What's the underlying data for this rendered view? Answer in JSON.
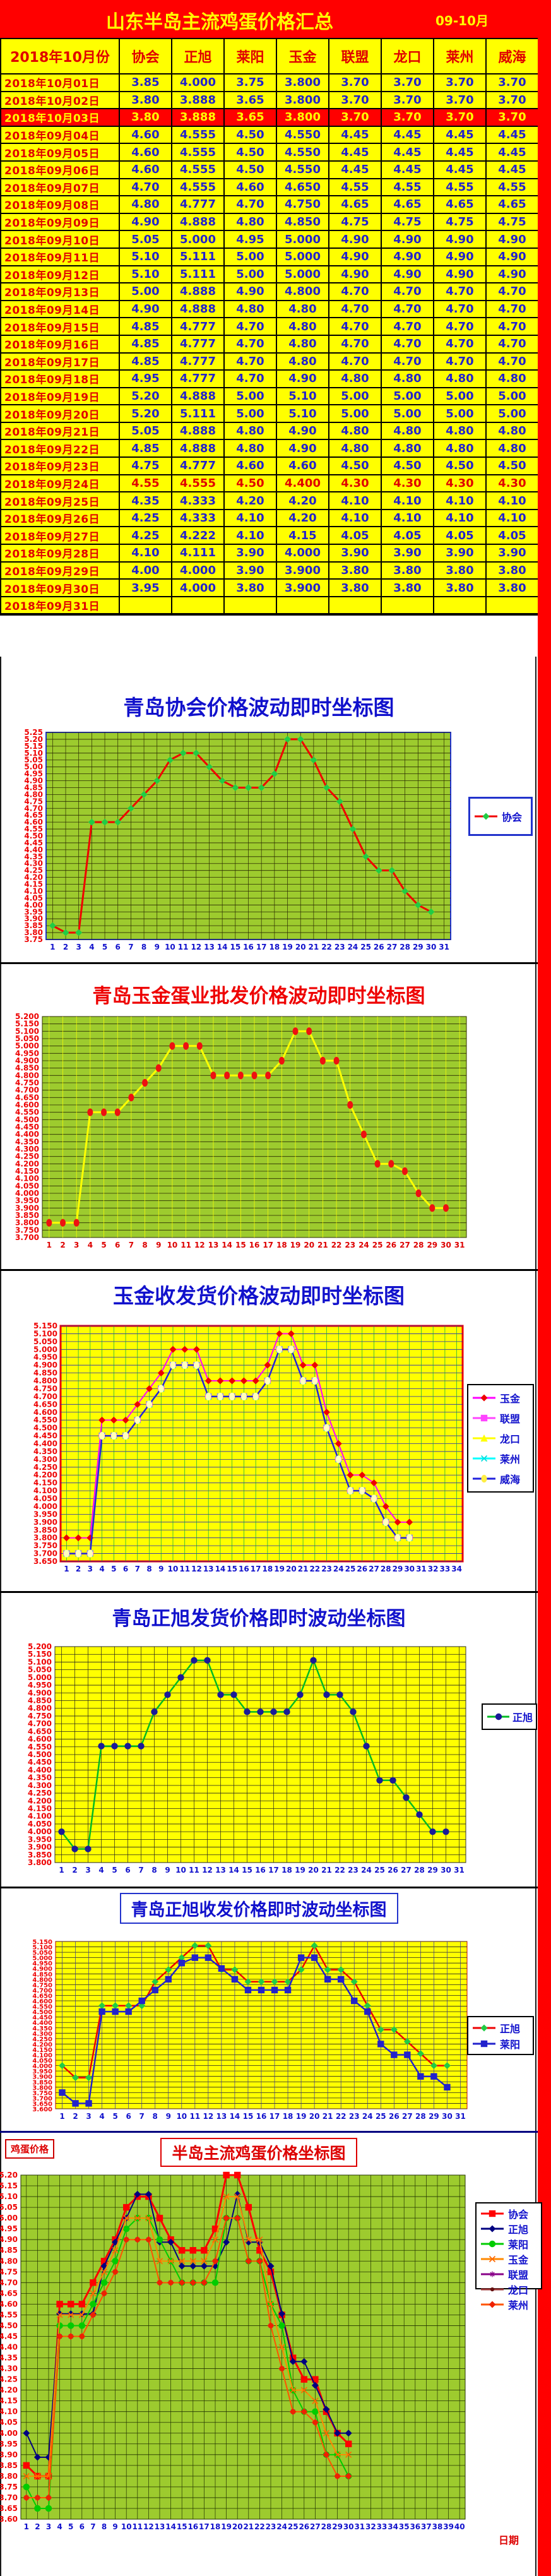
{
  "header": {
    "title": "山东半岛主流鸡蛋价格汇总",
    "period": "09-10月"
  },
  "table": {
    "date_header": "2018年10月份",
    "columns": [
      "协会",
      "正旭",
      "莱阳",
      "玉金",
      "联盟",
      "龙口",
      "莱州",
      "威海"
    ],
    "rows": [
      {
        "date": "2018年10月01日",
        "style": "normal",
        "values": [
          "3.85",
          "4.000",
          "3.75",
          "3.800",
          "3.70",
          "3.70",
          "3.70",
          "3.70"
        ]
      },
      {
        "date": "2018年10月02日",
        "style": "normal",
        "values": [
          "3.80",
          "3.888",
          "3.65",
          "3.800",
          "3.70",
          "3.70",
          "3.70",
          "3.70"
        ]
      },
      {
        "date": "2018年10月03日",
        "style": "red-bg",
        "values": [
          "3.80",
          "3.888",
          "3.65",
          "3.800",
          "3.70",
          "3.70",
          "3.70",
          "3.70"
        ]
      },
      {
        "date": "2018年09月04日",
        "style": "normal",
        "values": [
          "4.60",
          "4.555",
          "4.50",
          "4.550",
          "4.45",
          "4.45",
          "4.45",
          "4.45"
        ]
      },
      {
        "date": "2018年09月05日",
        "style": "normal",
        "values": [
          "4.60",
          "4.555",
          "4.50",
          "4.550",
          "4.45",
          "4.45",
          "4.45",
          "4.45"
        ]
      },
      {
        "date": "2018年09月06日",
        "style": "normal",
        "values": [
          "4.60",
          "4.555",
          "4.50",
          "4.550",
          "4.45",
          "4.45",
          "4.45",
          "4.45"
        ]
      },
      {
        "date": "2018年09月07日",
        "style": "normal",
        "values": [
          "4.70",
          "4.555",
          "4.60",
          "4.650",
          "4.55",
          "4.55",
          "4.55",
          "4.55"
        ]
      },
      {
        "date": "2018年09月08日",
        "style": "normal",
        "values": [
          "4.80",
          "4.777",
          "4.70",
          "4.750",
          "4.65",
          "4.65",
          "4.65",
          "4.65"
        ]
      },
      {
        "date": "2018年09月09日",
        "style": "normal",
        "values": [
          "4.90",
          "4.888",
          "4.80",
          "4.850",
          "4.75",
          "4.75",
          "4.75",
          "4.75"
        ]
      },
      {
        "date": "2018年09月10日",
        "style": "normal",
        "values": [
          "5.05",
          "5.000",
          "4.95",
          "5.000",
          "4.90",
          "4.90",
          "4.90",
          "4.90"
        ]
      },
      {
        "date": "2018年09月11日",
        "style": "normal",
        "values": [
          "5.10",
          "5.111",
          "5.00",
          "5.000",
          "4.90",
          "4.90",
          "4.90",
          "4.90"
        ]
      },
      {
        "date": "2018年09月12日",
        "style": "normal",
        "values": [
          "5.10",
          "5.111",
          "5.00",
          "5.000",
          "4.90",
          "4.90",
          "4.90",
          "4.90"
        ]
      },
      {
        "date": "2018年09月13日",
        "style": "normal",
        "values": [
          "5.00",
          "4.888",
          "4.90",
          "4.800",
          "4.70",
          "4.70",
          "4.70",
          "4.70"
        ]
      },
      {
        "date": "2018年09月14日",
        "style": "normal",
        "values": [
          "4.90",
          "4.888",
          "4.80",
          "4.80",
          "4.70",
          "4.70",
          "4.70",
          "4.70"
        ]
      },
      {
        "date": "2018年09月15日",
        "style": "normal",
        "values": [
          "4.85",
          "4.777",
          "4.70",
          "4.80",
          "4.70",
          "4.70",
          "4.70",
          "4.70"
        ]
      },
      {
        "date": "2018年09月16日",
        "style": "normal",
        "values": [
          "4.85",
          "4.777",
          "4.70",
          "4.80",
          "4.70",
          "4.70",
          "4.70",
          "4.70"
        ]
      },
      {
        "date": "2018年09月17日",
        "style": "normal",
        "values": [
          "4.85",
          "4.777",
          "4.70",
          "4.80",
          "4.70",
          "4.70",
          "4.70",
          "4.70"
        ]
      },
      {
        "date": "2018年09月18日",
        "style": "normal",
        "values": [
          "4.95",
          "4.777",
          "4.70",
          "4.90",
          "4.80",
          "4.80",
          "4.80",
          "4.80"
        ]
      },
      {
        "date": "2018年09月19日",
        "style": "normal",
        "values": [
          "5.20",
          "4.888",
          "5.00",
          "5.10",
          "5.00",
          "5.00",
          "5.00",
          "5.00"
        ]
      },
      {
        "date": "2018年09月20日",
        "style": "normal",
        "values": [
          "5.20",
          "5.111",
          "5.00",
          "5.10",
          "5.00",
          "5.00",
          "5.00",
          "5.00"
        ]
      },
      {
        "date": "2018年09月21日",
        "style": "normal",
        "values": [
          "5.05",
          "4.888",
          "4.80",
          "4.90",
          "4.80",
          "4.80",
          "4.80",
          "4.80"
        ]
      },
      {
        "date": "2018年09月22日",
        "style": "normal",
        "values": [
          "4.85",
          "4.888",
          "4.80",
          "4.90",
          "4.80",
          "4.80",
          "4.80",
          "4.80"
        ]
      },
      {
        "date": "2018年09月23日",
        "style": "normal",
        "values": [
          "4.75",
          "4.777",
          "4.60",
          "4.60",
          "4.50",
          "4.50",
          "4.50",
          "4.50"
        ]
      },
      {
        "date": "2018年09月24日",
        "style": "red-text",
        "values": [
          "4.55",
          "4.555",
          "4.50",
          "4.400",
          "4.30",
          "4.30",
          "4.30",
          "4.30"
        ]
      },
      {
        "date": "2018年09月25日",
        "style": "normal",
        "values": [
          "4.35",
          "4.333",
          "4.20",
          "4.20",
          "4.10",
          "4.10",
          "4.10",
          "4.10"
        ]
      },
      {
        "date": "2018年09月26日",
        "style": "normal",
        "values": [
          "4.25",
          "4.333",
          "4.10",
          "4.20",
          "4.10",
          "4.10",
          "4.10",
          "4.10"
        ]
      },
      {
        "date": "2018年09月27日",
        "style": "normal",
        "values": [
          "4.25",
          "4.222",
          "4.10",
          "4.15",
          "4.05",
          "4.05",
          "4.05",
          "4.05"
        ]
      },
      {
        "date": "2018年09月28日",
        "style": "normal",
        "values": [
          "4.10",
          "4.111",
          "3.90",
          "4.000",
          "3.90",
          "3.90",
          "3.90",
          "3.90"
        ]
      },
      {
        "date": "2018年09月29日",
        "style": "normal",
        "values": [
          "4.00",
          "4.000",
          "3.90",
          "3.900",
          "3.80",
          "3.80",
          "3.80",
          "3.80"
        ]
      },
      {
        "date": "2018年09月30日",
        "style": "normal",
        "values": [
          "3.95",
          "4.000",
          "3.80",
          "3.900",
          "3.80",
          "3.80",
          "3.80",
          "3.80"
        ]
      },
      {
        "date": "2018年09月31日",
        "style": "normal",
        "values": [
          "",
          "",
          "",
          "",
          "",
          "",
          "",
          ""
        ]
      }
    ]
  },
  "price_series": {
    "协会": [
      3.85,
      3.8,
      3.8,
      4.6,
      4.6,
      4.6,
      4.7,
      4.8,
      4.9,
      5.05,
      5.1,
      5.1,
      5.0,
      4.9,
      4.85,
      4.85,
      4.85,
      4.95,
      5.2,
      5.2,
      5.05,
      4.85,
      4.75,
      4.55,
      4.35,
      4.25,
      4.25,
      4.1,
      4.0,
      3.95
    ],
    "正旭": [
      4.0,
      3.888,
      3.888,
      4.555,
      4.555,
      4.555,
      4.555,
      4.777,
      4.888,
      5.0,
      5.111,
      5.111,
      4.888,
      4.888,
      4.777,
      4.777,
      4.777,
      4.777,
      4.888,
      5.111,
      4.888,
      4.888,
      4.777,
      4.555,
      4.333,
      4.333,
      4.222,
      4.111,
      4.0,
      4.0
    ],
    "莱阳": [
      3.75,
      3.65,
      3.65,
      4.5,
      4.5,
      4.5,
      4.6,
      4.7,
      4.8,
      4.95,
      5.0,
      5.0,
      4.9,
      4.8,
      4.7,
      4.7,
      4.7,
      4.7,
      5.0,
      5.0,
      4.8,
      4.8,
      4.6,
      4.5,
      4.2,
      4.1,
      4.1,
      3.9,
      3.9,
      3.8
    ],
    "玉金": [
      3.8,
      3.8,
      3.8,
      4.55,
      4.55,
      4.55,
      4.65,
      4.75,
      4.85,
      5.0,
      5.0,
      5.0,
      4.8,
      4.8,
      4.8,
      4.8,
      4.8,
      4.9,
      5.1,
      5.1,
      4.9,
      4.9,
      4.6,
      4.4,
      4.2,
      4.2,
      4.15,
      4.0,
      3.9,
      3.9
    ],
    "联盟": [
      3.7,
      3.7,
      3.7,
      4.45,
      4.45,
      4.45,
      4.55,
      4.65,
      4.75,
      4.9,
      4.9,
      4.9,
      4.7,
      4.7,
      4.7,
      4.7,
      4.7,
      4.8,
      5.0,
      5.0,
      4.8,
      4.8,
      4.5,
      4.3,
      4.1,
      4.1,
      4.05,
      3.9,
      3.8,
      3.8
    ]
  },
  "chart_data": [
    {
      "type": "line",
      "title": "青岛协会价格波动即时坐标图",
      "ymax": 5.25,
      "ymin": 3.75,
      "ystep": 0.05,
      "y_decimals": 2,
      "x_slots": 31,
      "series": [
        {
          "name": "协会",
          "values_key": "协会",
          "color": "#F00000",
          "width": 3,
          "marker": "diamond",
          "marker_color": "#22CC44"
        }
      ],
      "legend": {
        "entries": [
          {
            "label": "协会",
            "line_color": "#F00000",
            "marker": "diamond",
            "marker_color": "#22CC44"
          }
        ]
      }
    },
    {
      "type": "line",
      "title": "青岛玉金蛋业批发价格波动即时坐标图",
      "ymax": 5.2,
      "ymin": 3.7,
      "ystep": 0.05,
      "y_decimals": 3,
      "x_slots": 31,
      "series": [
        {
          "name": "玉金",
          "values_key": "玉金",
          "color": "#FFFF00",
          "width": 3,
          "marker": "ellipse",
          "marker_color": "#EE1111"
        }
      ],
      "legend": null
    },
    {
      "type": "line",
      "title": "玉金收发货价格波动即时坐标图",
      "ymax": 5.15,
      "ymin": 3.65,
      "ystep": 0.05,
      "y_decimals": 3,
      "x_slots": 34,
      "series": [
        {
          "name": "玉金",
          "values_key": "玉金",
          "color": "#FF00FF",
          "width": 2,
          "marker": "diamond",
          "marker_color": "#EE0000"
        },
        {
          "name": "联盟",
          "values_key": "联盟",
          "color": "#FF44FF",
          "width": 2,
          "marker": "square",
          "marker_color": "#FF44FF"
        },
        {
          "name": "龙口",
          "values_key": "联盟",
          "color": "#FFFF00",
          "width": 2,
          "marker": "triangle",
          "marker_color": "#FFFF00"
        },
        {
          "name": "莱州",
          "values_key": "联盟",
          "color": "#00FFFF",
          "width": 2,
          "marker": "x",
          "marker_color": "#00DDDD"
        },
        {
          "name": "威海",
          "values_key": "联盟",
          "color": "#2222DD",
          "width": 2.5,
          "marker": "ellipse",
          "marker_color": "#FFFFBB"
        }
      ],
      "legend": {
        "entries": [
          {
            "label": "玉金",
            "line_color": "#FF00FF",
            "marker": "diamond",
            "marker_color": "#EE0000"
          },
          {
            "label": "联盟",
            "line_color": "#FF44FF",
            "marker": "square",
            "marker_color": "#FF44FF"
          },
          {
            "label": "龙口",
            "line_color": "#FFFF00",
            "marker": "triangle",
            "marker_color": "#FFFF00"
          },
          {
            "label": "莱州",
            "line_color": "#00FFFF",
            "marker": "x",
            "marker_color": "#00DDDD"
          },
          {
            "label": "威海",
            "line_color": "#2222DD",
            "marker": "ellipse",
            "marker_color": "#FFEE44"
          }
        ]
      }
    },
    {
      "type": "line",
      "title": "青岛正旭发货价格即时波动坐标图",
      "ymax": 5.2,
      "ymin": 3.8,
      "ystep": 0.05,
      "y_decimals": 3,
      "x_slots": 31,
      "series": [
        {
          "name": "正旭",
          "values_key": "正旭",
          "color": "#00BB22",
          "width": 2.5,
          "marker": "circle",
          "marker_color": "#1A1A99"
        }
      ],
      "legend": {
        "entries": [
          {
            "label": "正旭",
            "line_color": "#00BB22",
            "marker": "circle",
            "marker_color": "#1A1A99"
          }
        ]
      }
    },
    {
      "type": "line",
      "title": "青岛正旭收发价格即时波动坐标图",
      "ymax": 5.15,
      "ymin": 3.6,
      "ystep": 0.05,
      "y_decimals": 3,
      "x_slots": 31,
      "series": [
        {
          "name": "正旭",
          "values_key": "正旭",
          "color": "#EE0000",
          "width": 2.5,
          "marker": "diamond",
          "marker_color": "#22CC44"
        },
        {
          "name": "莱阳",
          "values_key": "莱阳",
          "color": "#2222CC",
          "width": 2.5,
          "marker": "square",
          "marker_color": "#2222CC"
        }
      ],
      "legend": {
        "entries": [
          {
            "label": "正旭",
            "line_color": "#EE0000",
            "marker": "diamond",
            "marker_color": "#22CC44"
          },
          {
            "label": "莱阳",
            "line_color": "#2222CC",
            "marker": "square",
            "marker_color": "#2222CC"
          }
        ]
      }
    },
    {
      "type": "line",
      "title": "半岛主流鸡蛋价格坐标图",
      "ymax": 5.2,
      "ymin": 3.6,
      "ystep": 0.05,
      "y_decimals": 2,
      "x_slots": 40,
      "series": [
        {
          "name": "协会",
          "values_key": "协会",
          "color": "#FF0000",
          "width": 3,
          "marker": "square",
          "marker_color": "#FF0000"
        },
        {
          "name": "正旭",
          "values_key": "正旭",
          "color": "#000080",
          "width": 2,
          "marker": "diamond",
          "marker_color": "#000080"
        },
        {
          "name": "莱阳",
          "values_key": "莱阳",
          "color": "#00CC00",
          "width": 2,
          "marker": "circle",
          "marker_color": "#00CC00"
        },
        {
          "name": "玉金",
          "values_key": "玉金",
          "color": "#FF8800",
          "width": 2,
          "marker": "x",
          "marker_color": "#FF6600"
        },
        {
          "name": "联盟",
          "values_key": "联盟",
          "color": "#880088",
          "width": 1.5,
          "marker": "asterisk",
          "marker_color": "#880088"
        },
        {
          "name": "龙口",
          "values_key": "联盟",
          "color": "#993333",
          "width": 1.5,
          "marker": "dot",
          "marker_color": "#661111"
        },
        {
          "name": "莱州",
          "values_key": "联盟",
          "color": "#FF5500",
          "width": 2,
          "marker": "diamond",
          "marker_color": "#EE2200"
        }
      ],
      "legend": {
        "entries": [
          {
            "label": "协会",
            "line_color": "#FF0000",
            "marker": "square",
            "marker_color": "#FF0000"
          },
          {
            "label": "正旭",
            "line_color": "#000080",
            "marker": "diamond",
            "marker_color": "#000080"
          },
          {
            "label": "莱阳",
            "line_color": "#00CC00",
            "marker": "circle",
            "marker_color": "#00CC00"
          },
          {
            "label": "玉金",
            "line_color": "#FF8800",
            "marker": "x",
            "marker_color": "#FF6600"
          },
          {
            "label": "联盟",
            "line_color": "#880088",
            "marker": "asterisk",
            "marker_color": "#880088"
          },
          {
            "label": "龙口",
            "line_color": "#993333",
            "marker": "dot",
            "marker_color": "#661111"
          },
          {
            "label": "莱州",
            "line_color": "#FF5500",
            "marker": "diamond",
            "marker_color": "#EE2200"
          }
        ]
      }
    }
  ],
  "labels": {
    "egg_price": "鸡蛋价格",
    "date_axis": "日期"
  }
}
